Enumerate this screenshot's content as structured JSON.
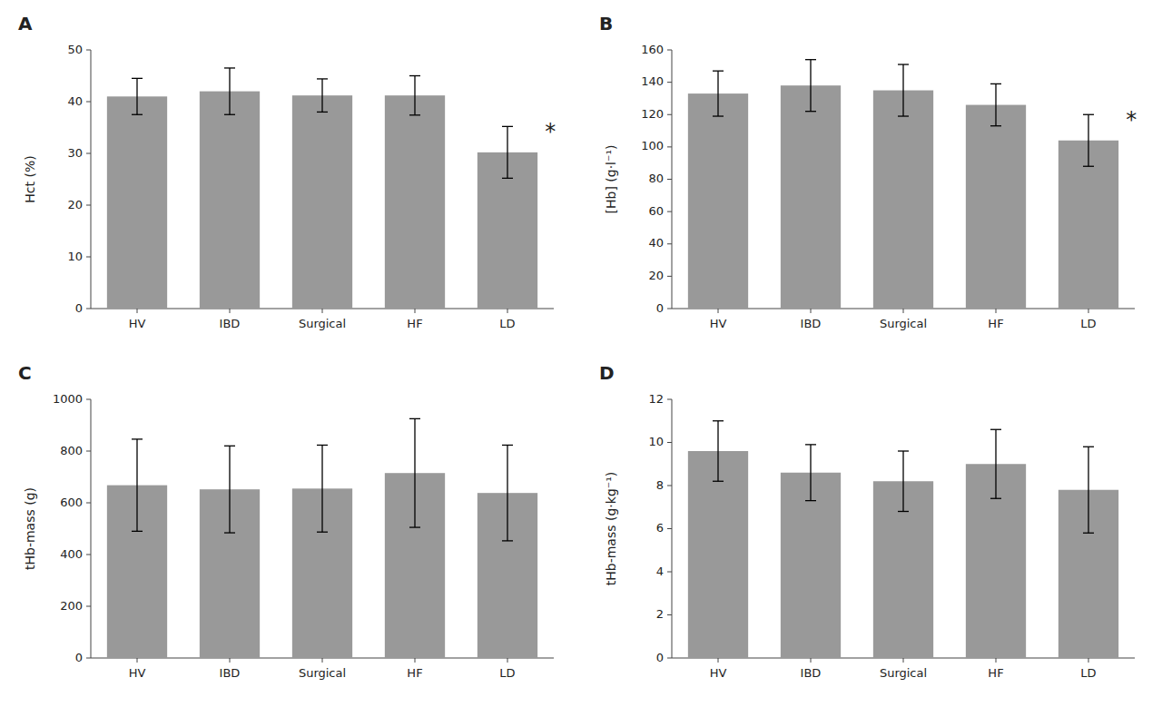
{
  "chart_data": [
    {
      "type": "bar",
      "title": "A",
      "ylabel": "Hct (%)",
      "categories": [
        "HV",
        "IBD",
        "Surgical",
        "HF",
        "LD"
      ],
      "values": [
        41.0,
        42.0,
        41.2,
        41.2,
        30.2
      ],
      "errors": [
        3.5,
        4.5,
        3.2,
        3.8,
        5.0
      ],
      "color": "#999999",
      "ylim": [
        0,
        50
      ],
      "yticks": [
        0,
        10,
        20,
        30,
        40,
        50
      ],
      "annotations": [
        {
          "text": "*",
          "category": "LD"
        }
      ]
    },
    {
      "type": "bar",
      "title": "B",
      "ylabel": "[Hb] (g·l⁻¹)",
      "categories": [
        "HV",
        "IBD",
        "Surgical",
        "HF",
        "LD"
      ],
      "values": [
        133,
        138,
        135,
        126,
        104
      ],
      "errors": [
        14,
        16,
        16,
        13,
        16
      ],
      "color": "#999999",
      "ylim": [
        0,
        160
      ],
      "yticks": [
        0,
        20,
        40,
        60,
        80,
        100,
        120,
        140,
        160
      ],
      "annotations": [
        {
          "text": "*",
          "category": "LD"
        }
      ]
    },
    {
      "type": "bar",
      "title": "C",
      "ylabel": "tHb-mass (g)",
      "categories": [
        "HV",
        "IBD",
        "Surgical",
        "HF",
        "LD"
      ],
      "values": [
        668,
        652,
        655,
        715,
        638
      ],
      "errors": [
        178,
        168,
        168,
        210,
        185
      ],
      "color": "#999999",
      "ylim": [
        0,
        1000
      ],
      "yticks": [
        0,
        200,
        400,
        600,
        800,
        1000
      ]
    },
    {
      "type": "bar",
      "title": "D",
      "ylabel": "tHb-mass (g·kg⁻¹)",
      "categories": [
        "HV",
        "IBD",
        "Surgical",
        "HF",
        "LD"
      ],
      "values": [
        9.6,
        8.6,
        8.2,
        9.0,
        7.8
      ],
      "errors": [
        1.4,
        1.3,
        1.4,
        1.6,
        2.0
      ],
      "color": "#999999",
      "ylim": [
        0,
        12
      ],
      "yticks": [
        0,
        2,
        4,
        6,
        8,
        10,
        12
      ]
    }
  ]
}
